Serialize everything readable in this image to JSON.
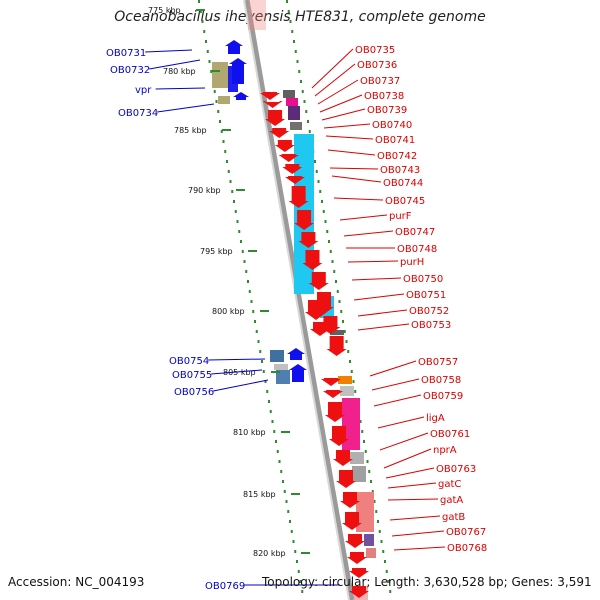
{
  "title": "Oceanobacillus iheyensis HTE831, complete genome",
  "accession": "Accession: NC_004193",
  "summary": "Topology: circular; Length: 3,630,528 bp; Genes: 3,591",
  "colors": {
    "ring": "#9a9a9a",
    "ticks": "#2e8b2e",
    "left_genes": "#0000cc",
    "right_genes": "#cc0000",
    "cyan_cog": "#1ec8f0",
    "pink_cog": "#f0208c",
    "salmon_cog": "#f08080"
  },
  "kbp_labels": [
    "775 kbp",
    "780 kbp",
    "785 kbp",
    "790 kbp",
    "795 kbp",
    "800 kbp",
    "805 kbp",
    "810 kbp",
    "815 kbp",
    "820 kbp"
  ],
  "left_genes": [
    "OB0731",
    "OB0732",
    "vpr",
    "OB0734",
    "OB0754",
    "OB0755",
    "OB0756",
    "OB0769"
  ],
  "right_genes": [
    "OB0735",
    "OB0736",
    "OB0737",
    "OB0738",
    "OB0739",
    "OB0740",
    "OB0741",
    "OB0742",
    "OB0743",
    "OB0744",
    "OB0745",
    "purF",
    "OB0747",
    "OB0748",
    "purH",
    "OB0750",
    "OB0751",
    "OB0752",
    "OB0753",
    "OB0757",
    "OB0758",
    "OB0759",
    "ligA",
    "OB0761",
    "nprA",
    "OB0763",
    "gatC",
    "gatA",
    "gatB",
    "OB0767",
    "OB0768"
  ]
}
